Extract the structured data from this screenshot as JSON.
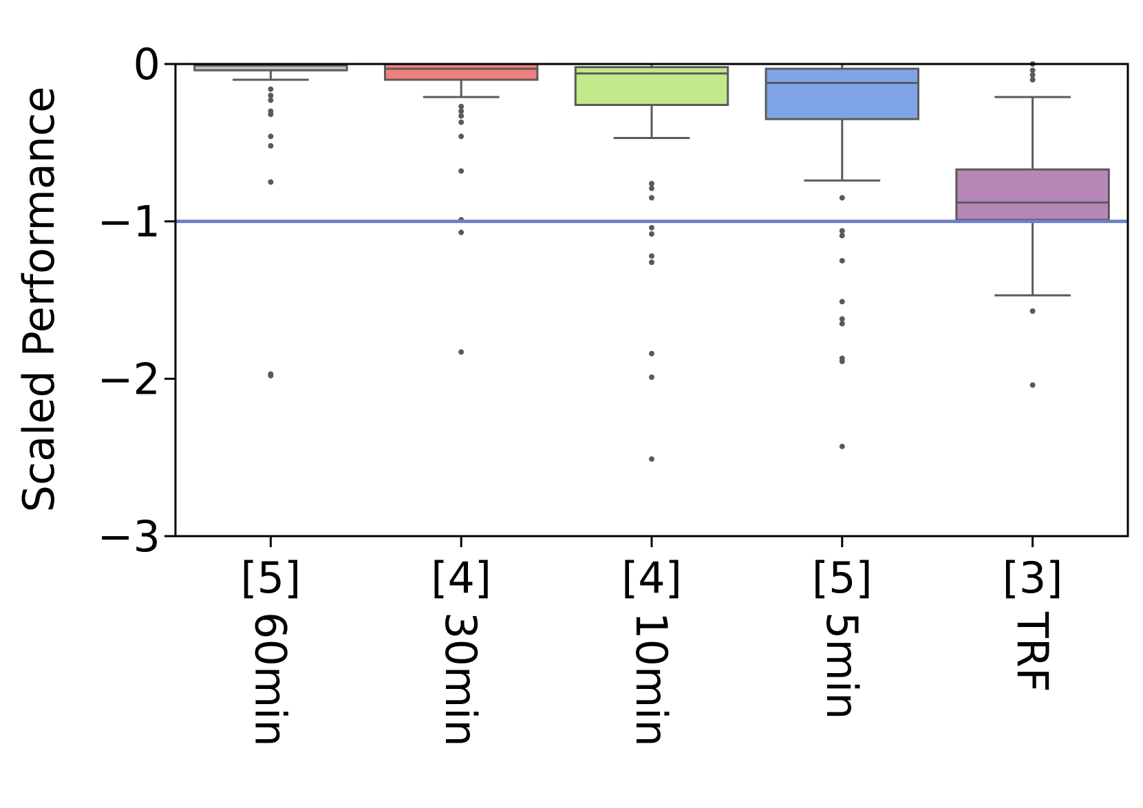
{
  "chart_data": {
    "type": "box",
    "ylabel": "Scaled Performance",
    "ylim": [
      -3,
      0
    ],
    "yticks": [
      0,
      -1,
      -2,
      -3
    ],
    "ytick_labels": [
      "0",
      "−1",
      "−2",
      "−3"
    ],
    "reference_line": {
      "y": -1,
      "color": "#6e7fc8"
    },
    "grid": false,
    "categories": [
      {
        "index": "[5]",
        "name": "60min",
        "color": "#c4c4c4",
        "q1": -0.04,
        "median": -0.01,
        "q3": 0.0,
        "whisker_low": -0.1,
        "whisker_high": 0.0,
        "outliers": [
          -0.16,
          -0.2,
          -0.23,
          -0.3,
          -0.32,
          -0.46,
          -0.52,
          -0.75,
          -1.97,
          -1.98
        ]
      },
      {
        "index": "[4]",
        "name": "30min",
        "color": "#f07f7f",
        "q1": -0.1,
        "median": -0.03,
        "q3": 0.0,
        "whisker_low": -0.21,
        "whisker_high": 0.0,
        "outliers": [
          -0.27,
          -0.3,
          -0.33,
          -0.37,
          -0.46,
          -0.68,
          -0.99,
          -1.07,
          -1.83
        ]
      },
      {
        "index": "[4]",
        "name": "10min",
        "color": "#c2e98a",
        "q1": -0.26,
        "median": -0.06,
        "q3": -0.02,
        "whisker_low": -0.47,
        "whisker_high": 0.0,
        "outliers": [
          -0.76,
          -0.79,
          -0.85,
          -1.04,
          -1.08,
          -1.22,
          -1.26,
          -1.84,
          -1.99,
          -2.51
        ]
      },
      {
        "index": "[5]",
        "name": "5min",
        "color": "#7fa4e6",
        "q1": -0.35,
        "median": -0.12,
        "q3": -0.03,
        "whisker_low": -0.74,
        "whisker_high": 0.0,
        "outliers": [
          -0.85,
          -1.06,
          -1.09,
          -1.25,
          -1.51,
          -1.62,
          -1.65,
          -1.87,
          -1.89,
          -2.43
        ]
      },
      {
        "index": "[3]",
        "name": "TRF",
        "color": "#b787b7",
        "q1": -0.99,
        "median": -0.88,
        "q3": -0.67,
        "whisker_low": -1.47,
        "whisker_high": -0.21,
        "outliers": [
          0.0,
          -0.04,
          -0.07,
          -0.1,
          -1.57,
          -2.04
        ]
      }
    ]
  }
}
